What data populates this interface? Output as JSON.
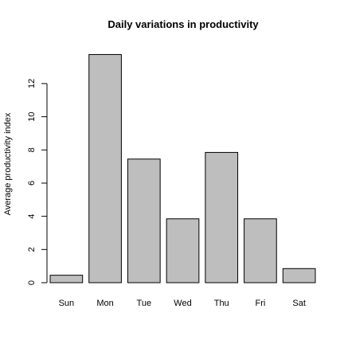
{
  "chart_data": {
    "type": "bar",
    "title": "Daily variations in productivity",
    "xlabel": "",
    "ylabel": "Average productivity index",
    "categories": [
      "Sun",
      "Mon",
      "Tue",
      "Wed",
      "Thu",
      "Fri",
      "Sat"
    ],
    "values": [
      0.45,
      13.75,
      7.45,
      3.85,
      7.85,
      3.85,
      0.85
    ],
    "ylim": [
      0,
      14.3
    ],
    "yticks": [
      0,
      2,
      4,
      6,
      8,
      10,
      12
    ],
    "bar_color": "#bebebe",
    "border_color": "#000000",
    "grid": false,
    "legend": "none"
  }
}
